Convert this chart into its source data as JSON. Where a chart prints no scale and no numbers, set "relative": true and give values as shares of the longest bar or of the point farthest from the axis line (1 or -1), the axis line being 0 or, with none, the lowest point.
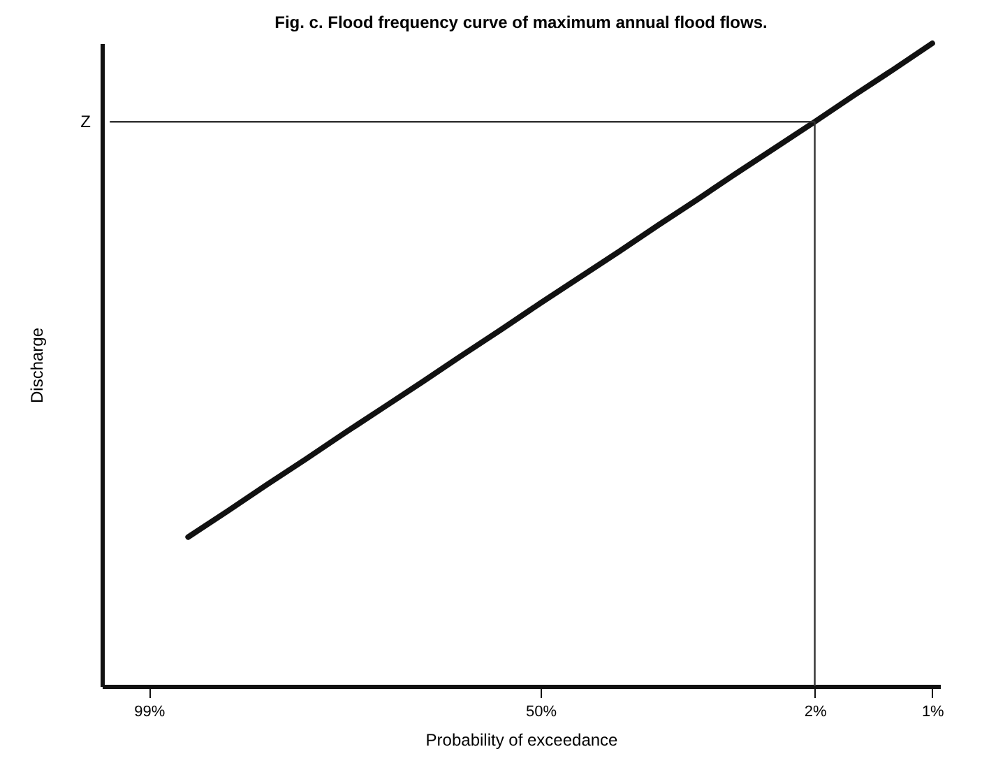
{
  "chart_data": {
    "type": "line",
    "title": "Fig. c.  Flood frequency curve of maximum annual flood flows.",
    "xlabel": "Probability of exceedance",
    "ylabel": "Discharge",
    "relative": true,
    "categories": [
      null,
      "99%",
      null,
      null,
      null,
      null,
      null,
      null,
      null,
      null,
      null,
      "50%",
      null,
      null,
      null,
      null,
      null,
      null,
      "2%",
      null,
      null,
      "1%"
    ],
    "series": [
      {
        "color": "#111111",
        "values": [
          null,
          null,
          0.232,
          0.272,
          0.313,
          0.353,
          0.394,
          0.434,
          0.474,
          0.515,
          0.555,
          0.596,
          0.636,
          0.676,
          0.717,
          0.757,
          0.798,
          0.838,
          0.878,
          0.919,
          0.959,
          1.0
        ]
      }
    ],
    "ref_lines": [
      {
        "axis": "y",
        "value": 0.878,
        "label": "Z"
      },
      {
        "axis": "x",
        "value": "2%",
        "label": null
      }
    ],
    "grid": false
  }
}
